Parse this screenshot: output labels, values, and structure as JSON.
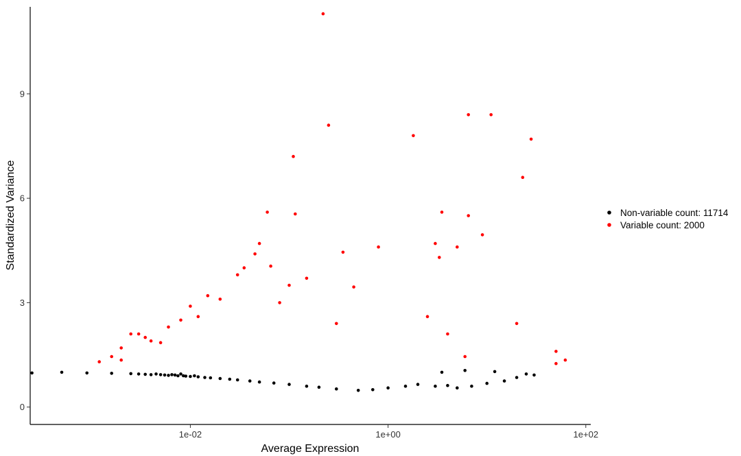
{
  "chart_data": {
    "type": "scatter",
    "title": "",
    "xlabel": "Average Expression",
    "ylabel": "Standardized Variance",
    "x_scale": "log10",
    "xlim": [
      0.00015,
      0.0005
    ],
    "ylim": [
      -0.5,
      11.5
    ],
    "x_ticks": [
      {
        "value": 0.01,
        "label": "1e-02"
      },
      {
        "value": 1,
        "label": "1e+00"
      },
      {
        "value": 100,
        "label": "1e+02"
      }
    ],
    "y_ticks": [
      {
        "value": 0,
        "label": "0"
      },
      {
        "value": 3,
        "label": "3"
      },
      {
        "value": 6,
        "label": "6"
      },
      {
        "value": 9,
        "label": "9"
      }
    ],
    "grid": false,
    "legend_position": "right",
    "series": [
      {
        "name": "Non-variable count: 11714",
        "color": "#000000",
        "points": [
          [
            0.00025,
            0.98
          ],
          [
            0.0005,
            1.0
          ],
          [
            0.0009,
            0.98
          ],
          [
            0.0016,
            0.97
          ],
          [
            0.0025,
            0.96
          ],
          [
            0.003,
            0.95
          ],
          [
            0.0035,
            0.94
          ],
          [
            0.004,
            0.93
          ],
          [
            0.0045,
            0.95
          ],
          [
            0.005,
            0.93
          ],
          [
            0.0055,
            0.92
          ],
          [
            0.006,
            0.91
          ],
          [
            0.0065,
            0.93
          ],
          [
            0.007,
            0.92
          ],
          [
            0.0075,
            0.9
          ],
          [
            0.008,
            0.95
          ],
          [
            0.0085,
            0.9
          ],
          [
            0.009,
            0.89
          ],
          [
            0.01,
            0.88
          ],
          [
            0.011,
            0.9
          ],
          [
            0.012,
            0.87
          ],
          [
            0.014,
            0.85
          ],
          [
            0.016,
            0.84
          ],
          [
            0.02,
            0.82
          ],
          [
            0.025,
            0.8
          ],
          [
            0.03,
            0.78
          ],
          [
            0.04,
            0.75
          ],
          [
            0.05,
            0.72
          ],
          [
            0.07,
            0.69
          ],
          [
            0.1,
            0.65
          ],
          [
            0.15,
            0.6
          ],
          [
            0.2,
            0.57
          ],
          [
            0.3,
            0.52
          ],
          [
            0.5,
            0.48
          ],
          [
            0.7,
            0.5
          ],
          [
            1.0,
            0.55
          ],
          [
            1.5,
            0.6
          ],
          [
            2.0,
            0.65
          ],
          [
            3.0,
            0.6
          ],
          [
            4.0,
            0.62
          ],
          [
            5.0,
            0.55
          ],
          [
            7.0,
            0.6
          ],
          [
            10.0,
            0.68
          ],
          [
            15.0,
            0.75
          ],
          [
            20.0,
            0.85
          ],
          [
            25.0,
            0.95
          ],
          [
            30.0,
            0.92
          ],
          [
            3.5,
            1.0
          ],
          [
            6.0,
            1.05
          ],
          [
            12.0,
            1.02
          ]
        ]
      },
      {
        "name": "Variable count: 2000",
        "color": "#ff0000",
        "points": [
          [
            0.0012,
            1.3
          ],
          [
            0.0016,
            1.45
          ],
          [
            0.002,
            1.7
          ],
          [
            0.002,
            1.35
          ],
          [
            0.0025,
            2.1
          ],
          [
            0.003,
            2.1
          ],
          [
            0.0035,
            2.0
          ],
          [
            0.004,
            1.9
          ],
          [
            0.005,
            1.85
          ],
          [
            0.006,
            2.3
          ],
          [
            0.008,
            2.5
          ],
          [
            0.01,
            2.9
          ],
          [
            0.012,
            2.6
          ],
          [
            0.015,
            3.2
          ],
          [
            0.02,
            3.1
          ],
          [
            0.03,
            3.8
          ],
          [
            0.035,
            4.0
          ],
          [
            0.045,
            4.4
          ],
          [
            0.05,
            4.7
          ],
          [
            0.06,
            5.6
          ],
          [
            0.065,
            4.05
          ],
          [
            0.08,
            3.0
          ],
          [
            0.1,
            3.5
          ],
          [
            0.11,
            7.2
          ],
          [
            0.115,
            5.55
          ],
          [
            0.15,
            3.7
          ],
          [
            0.22,
            11.3
          ],
          [
            0.25,
            8.1
          ],
          [
            0.35,
            4.45
          ],
          [
            0.45,
            3.45
          ],
          [
            0.8,
            4.6
          ],
          [
            1.8,
            7.8
          ],
          [
            3.0,
            4.7
          ],
          [
            3.3,
            4.3
          ],
          [
            3.5,
            5.6
          ],
          [
            5.0,
            4.6
          ],
          [
            6.5,
            8.4
          ],
          [
            6.5,
            5.5
          ],
          [
            9.0,
            4.95
          ],
          [
            11.0,
            8.4
          ],
          [
            20.0,
            2.4
          ],
          [
            23.0,
            6.6
          ],
          [
            28.0,
            7.7
          ],
          [
            50.0,
            1.6
          ],
          [
            50.0,
            1.25
          ],
          [
            62.0,
            1.35
          ],
          [
            2.5,
            2.6
          ],
          [
            4.0,
            2.1
          ],
          [
            6.0,
            1.45
          ],
          [
            0.3,
            2.4
          ]
        ]
      }
    ]
  }
}
